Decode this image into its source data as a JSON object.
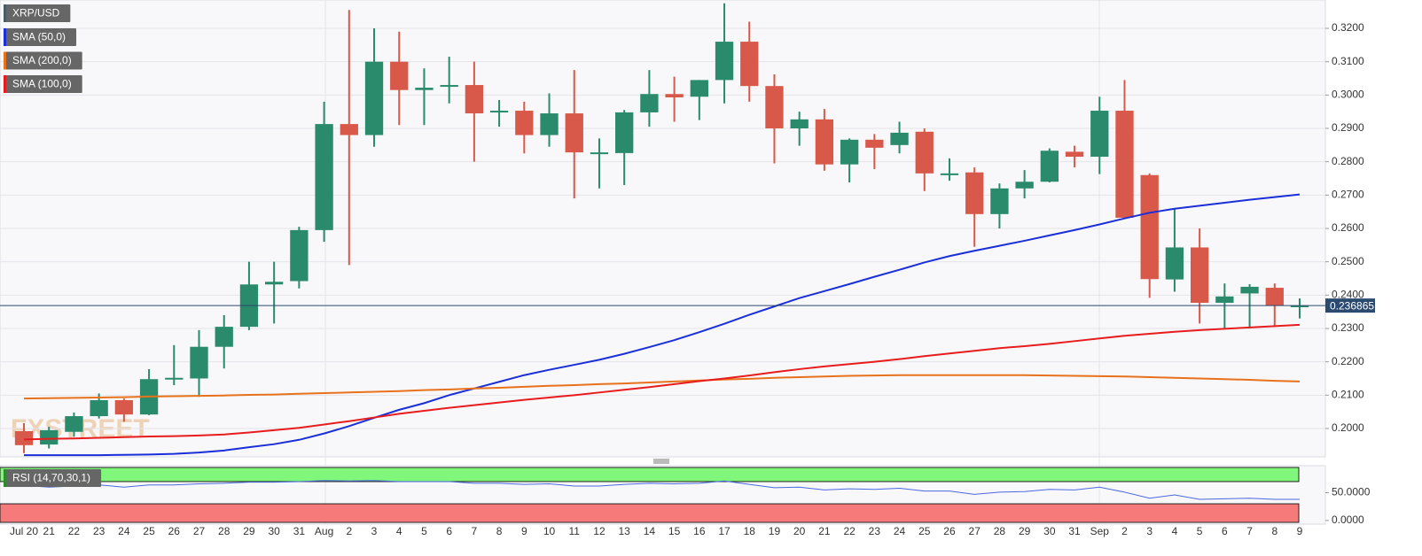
{
  "chart_data": [
    {
      "type": "candlestick",
      "title": "XRP/USD",
      "watermark": "FXSTREET",
      "categories": [
        "Jul 20",
        "21",
        "22",
        "23",
        "24",
        "25",
        "26",
        "27",
        "28",
        "29",
        "30",
        "31",
        "Aug",
        "2",
        "3",
        "4",
        "5",
        "6",
        "7",
        "8",
        "9",
        "10",
        "11",
        "12",
        "13",
        "14",
        "15",
        "16",
        "17",
        "18",
        "19",
        "20",
        "21",
        "22",
        "23",
        "24",
        "25",
        "26",
        "27",
        "28",
        "29",
        "30",
        "31",
        "Sep",
        "2",
        "3",
        "4",
        "5",
        "6",
        "7",
        "8",
        "9"
      ],
      "open": [
        0.1992,
        0.1952,
        0.199,
        0.2037,
        0.2085,
        0.2042,
        0.2148,
        0.215,
        0.2245,
        0.2305,
        0.2432,
        0.2442,
        0.2595,
        0.2913,
        0.288,
        0.31,
        0.3015,
        0.3025,
        0.303,
        0.2948,
        0.2953,
        0.288,
        0.2945,
        0.2828,
        0.2826,
        0.2948,
        0.3003,
        0.2995,
        0.3045,
        0.316,
        0.3027,
        0.29,
        0.2927,
        0.2792,
        0.2866,
        0.285,
        0.289,
        0.2765,
        0.2768,
        0.2643,
        0.272,
        0.274,
        0.283,
        0.2815,
        0.2953,
        0.276,
        0.2447,
        0.2543,
        0.2377,
        0.2405,
        0.2422,
        0.2368
      ],
      "high": [
        0.2016,
        0.2005,
        0.2048,
        0.2105,
        0.209,
        0.2178,
        0.225,
        0.2295,
        0.234,
        0.25,
        0.25,
        0.2605,
        0.298,
        0.3255,
        0.32,
        0.319,
        0.308,
        0.3115,
        0.31,
        0.2985,
        0.298,
        0.3005,
        0.3075,
        0.287,
        0.2955,
        0.3075,
        0.3055,
        0.3045,
        0.3275,
        0.322,
        0.3062,
        0.295,
        0.2958,
        0.287,
        0.2883,
        0.292,
        0.29,
        0.281,
        0.2783,
        0.2735,
        0.2775,
        0.284,
        0.2848,
        0.2995,
        0.3045,
        0.2765,
        0.266,
        0.26,
        0.2435,
        0.2433,
        0.2435,
        0.239
      ],
      "low": [
        0.1926,
        0.194,
        0.1975,
        0.203,
        0.202,
        0.204,
        0.213,
        0.2095,
        0.218,
        0.2295,
        0.2315,
        0.242,
        0.256,
        0.249,
        0.2845,
        0.291,
        0.291,
        0.2975,
        0.28,
        0.2905,
        0.2825,
        0.2845,
        0.269,
        0.272,
        0.273,
        0.2905,
        0.292,
        0.2925,
        0.2975,
        0.298,
        0.2795,
        0.2848,
        0.2773,
        0.2738,
        0.2778,
        0.2825,
        0.2712,
        0.2743,
        0.2545,
        0.26,
        0.269,
        0.2738,
        0.2783,
        0.2763,
        0.263,
        0.2392,
        0.241,
        0.2315,
        0.23,
        0.23,
        0.2305,
        0.233
      ],
      "close": [
        0.195,
        0.1995,
        0.2037,
        0.2085,
        0.2042,
        0.2148,
        0.2152,
        0.2245,
        0.2305,
        0.2432,
        0.244,
        0.2595,
        0.2913,
        0.288,
        0.31,
        0.3015,
        0.3022,
        0.303,
        0.2945,
        0.2953,
        0.288,
        0.2945,
        0.2828,
        0.2828,
        0.2948,
        0.3003,
        0.2993,
        0.3045,
        0.316,
        0.3027,
        0.29,
        0.2927,
        0.2792,
        0.2866,
        0.2842,
        0.2887,
        0.2765,
        0.2765,
        0.2643,
        0.272,
        0.274,
        0.2833,
        0.2815,
        0.2953,
        0.2632,
        0.2448,
        0.2543,
        0.2377,
        0.2396,
        0.2425,
        0.2368,
        0.2369
      ],
      "up_color": "#2a8a6c",
      "down_color": "#d8594a",
      "series": [
        {
          "name": "SMA (50,0)",
          "color": "#1a2fd8",
          "values": [
            0.192,
            0.192,
            0.192,
            0.192,
            0.1921,
            0.1922,
            0.1924,
            0.1928,
            0.1934,
            0.1944,
            0.1953,
            0.1966,
            0.1985,
            0.2007,
            0.2032,
            0.2056,
            0.2076,
            0.21,
            0.212,
            0.214,
            0.216,
            0.2176,
            0.2191,
            0.2206,
            0.2224,
            0.2244,
            0.2265,
            0.2289,
            0.2314,
            0.2341,
            0.2366,
            0.2391,
            0.2412,
            0.2433,
            0.2455,
            0.2476,
            0.2498,
            0.2517,
            0.2533,
            0.2548,
            0.2563,
            0.2579,
            0.2595,
            0.2612,
            0.263,
            0.2647,
            0.2659,
            0.2668,
            0.2677,
            0.2686,
            0.2694,
            0.2702
          ]
        },
        {
          "name": "SMA (200,0)",
          "color": "#e8721c",
          "values": [
            0.209,
            0.2091,
            0.2092,
            0.2093,
            0.2094,
            0.2096,
            0.2097,
            0.2098,
            0.2099,
            0.2101,
            0.2102,
            0.2104,
            0.2106,
            0.2108,
            0.211,
            0.2112,
            0.2115,
            0.2117,
            0.212,
            0.2122,
            0.2125,
            0.2128,
            0.213,
            0.2133,
            0.2135,
            0.2138,
            0.2141,
            0.2144,
            0.2147,
            0.2149,
            0.2152,
            0.2154,
            0.2156,
            0.2158,
            0.2159,
            0.216,
            0.216,
            0.216,
            0.216,
            0.216,
            0.216,
            0.2159,
            0.2158,
            0.2157,
            0.2156,
            0.2154,
            0.2152,
            0.215,
            0.2148,
            0.2146,
            0.2143,
            0.2141
          ]
        },
        {
          "name": "SMA (100,0)",
          "color": "#e81c1c",
          "values": [
            0.1967,
            0.1969,
            0.197,
            0.1972,
            0.1974,
            0.1976,
            0.1977,
            0.1979,
            0.1982,
            0.1988,
            0.1995,
            0.2002,
            0.2012,
            0.2022,
            0.2033,
            0.2044,
            0.2053,
            0.2062,
            0.207,
            0.2078,
            0.2086,
            0.2093,
            0.21,
            0.2108,
            0.2116,
            0.2124,
            0.2133,
            0.2142,
            0.215,
            0.2159,
            0.2169,
            0.2178,
            0.2186,
            0.2193,
            0.22,
            0.2208,
            0.2217,
            0.2225,
            0.2233,
            0.2241,
            0.2247,
            0.2254,
            0.2262,
            0.227,
            0.2278,
            0.2284,
            0.229,
            0.2295,
            0.2299,
            0.2303,
            0.2307,
            0.2311
          ]
        }
      ],
      "last_price": 0.236865,
      "ylim": [
        0.1915,
        0.3285
      ],
      "yticks": [
        {
          "value": 0.2,
          "label": "0.2000"
        },
        {
          "value": 0.21,
          "label": "0.2100"
        },
        {
          "value": 0.22,
          "label": "0.2200"
        },
        {
          "value": 0.23,
          "label": "0.2300"
        },
        {
          "value": 0.24,
          "label": "0.2400"
        },
        {
          "value": 0.25,
          "label": "0.2500"
        },
        {
          "value": 0.26,
          "label": "0.2600"
        },
        {
          "value": 0.27,
          "label": "0.2700"
        },
        {
          "value": 0.28,
          "label": "0.2800"
        },
        {
          "value": 0.29,
          "label": "0.2900"
        },
        {
          "value": 0.3,
          "label": "0.3000"
        },
        {
          "value": 0.31,
          "label": "0.3100"
        },
        {
          "value": 0.32,
          "label": "0.3200"
        }
      ],
      "grid": true
    },
    {
      "type": "line",
      "series": [
        {
          "name": "RSI (14,70,30,1)",
          "color": "#4a68e0",
          "values": [
            63,
            60,
            62,
            64,
            60,
            64,
            64,
            66,
            67,
            69,
            69,
            70,
            72,
            71,
            72,
            70,
            70,
            70,
            67,
            67,
            65,
            66,
            62,
            62,
            65,
            67,
            66,
            67,
            71,
            65,
            59,
            60,
            55,
            57,
            56,
            58,
            53,
            53,
            47,
            51,
            52,
            56,
            55,
            60,
            51,
            40,
            46,
            38,
            39,
            40,
            38,
            38
          ]
        }
      ],
      "overbought": 70,
      "overbought_color": "#80f77a",
      "oversold": 30,
      "oversold_color": "#f77a7a",
      "ylim": [
        -5,
        97
      ],
      "yticks": [
        {
          "value": 0,
          "label": "0.0000"
        },
        {
          "value": 50,
          "label": "50.0000"
        }
      ]
    }
  ]
}
